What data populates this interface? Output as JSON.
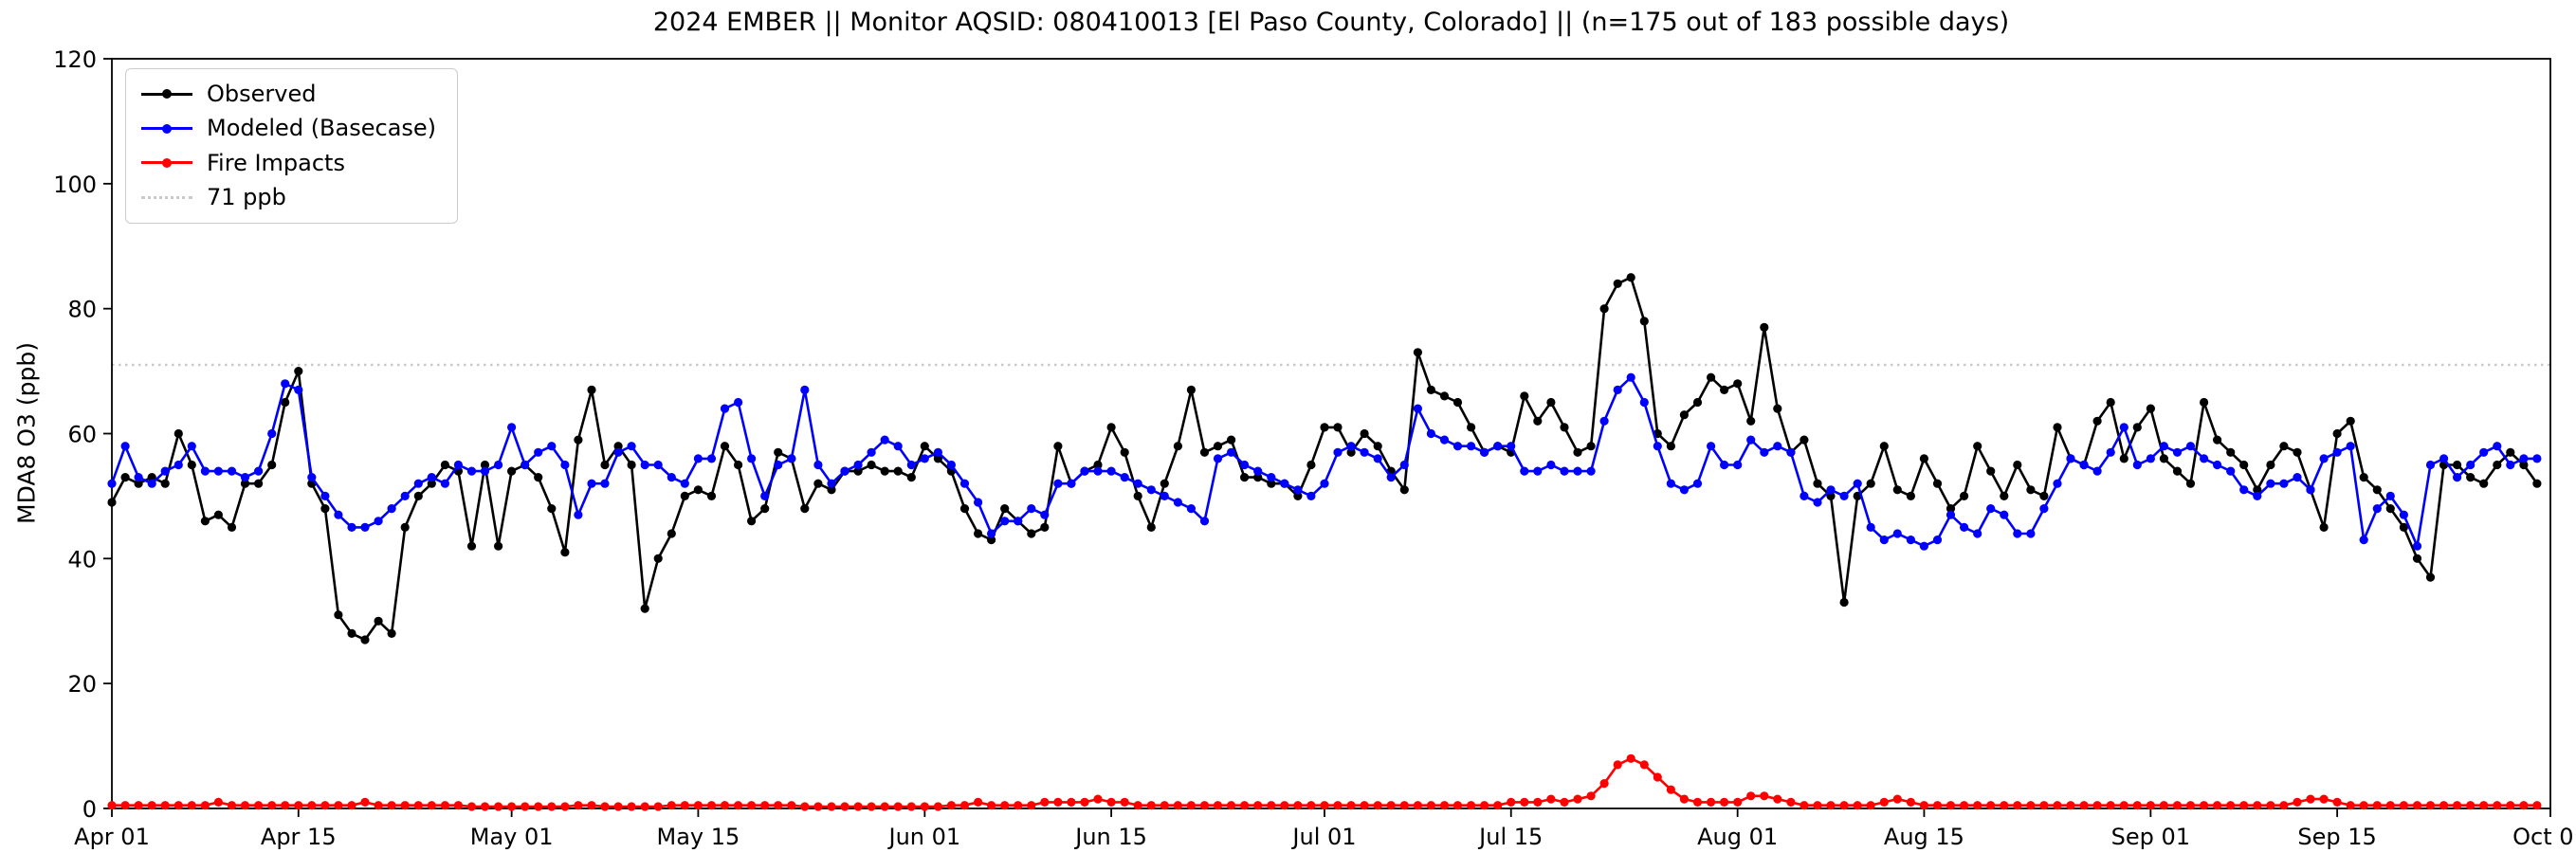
{
  "title": "2024 EMBER || Monitor AQSID: 080410013 [El Paso County, Colorado] || (n=175 out of 183 possible days)",
  "colors": {
    "observed": "#000000",
    "modeled": "#0000ff",
    "fire": "#ff0000",
    "threshold": "#c9c9c9",
    "axis": "#000000",
    "background": "#ffffff"
  },
  "chart_data": {
    "type": "line",
    "title": "2024 EMBER || Monitor AQSID: 080410013 [El Paso County, Colorado] || (n=175 out of 183 possible days)",
    "xlabel": "",
    "ylabel": "MDA8 O3 (ppb)",
    "ylim": [
      0,
      120
    ],
    "yticks": [
      0,
      20,
      40,
      60,
      80,
      100,
      120
    ],
    "x_unit": "day",
    "x_start": "Apr 01",
    "x_end": "Oct 01",
    "x_domain_days": 183,
    "n_points": 183,
    "grid": false,
    "legend_position": "upper-left",
    "x_ticks": [
      {
        "day": 0,
        "label": "Apr 01"
      },
      {
        "day": 14,
        "label": "Apr 15"
      },
      {
        "day": 30,
        "label": "May 01"
      },
      {
        "day": 44,
        "label": "May 15"
      },
      {
        "day": 61,
        "label": "Jun 01"
      },
      {
        "day": 75,
        "label": "Jun 15"
      },
      {
        "day": 91,
        "label": "Jul 01"
      },
      {
        "day": 105,
        "label": "Jul 15"
      },
      {
        "day": 122,
        "label": "Aug 01"
      },
      {
        "day": 136,
        "label": "Aug 15"
      },
      {
        "day": 153,
        "label": "Sep 01"
      },
      {
        "day": 167,
        "label": "Sep 15"
      },
      {
        "day": 183,
        "label": "Oct 01"
      }
    ],
    "threshold": {
      "value": 71,
      "label": "71 ppb",
      "color": "#c9c9c9"
    },
    "series": [
      {
        "id": "observed",
        "name": "Observed",
        "color": "#000000",
        "values": [
          49,
          53,
          52,
          53,
          52,
          60,
          55,
          46,
          47,
          45,
          52,
          52,
          55,
          65,
          70,
          52,
          48,
          31,
          28,
          27,
          30,
          28,
          45,
          50,
          52,
          55,
          54,
          42,
          55,
          42,
          54,
          55,
          53,
          48,
          41,
          59,
          67,
          55,
          58,
          55,
          32,
          40,
          44,
          50,
          51,
          50,
          58,
          55,
          46,
          48,
          57,
          56,
          48,
          52,
          51,
          54,
          54,
          55,
          54,
          54,
          53,
          58,
          56,
          54,
          48,
          44,
          43,
          48,
          46,
          44,
          45,
          58,
          52,
          54,
          55,
          61,
          57,
          50,
          45,
          52,
          58,
          67,
          57,
          58,
          59,
          53,
          53,
          52,
          52,
          50,
          55,
          61,
          61,
          57,
          60,
          58,
          54,
          51,
          73,
          67,
          66,
          65,
          61,
          57,
          58,
          57,
          66,
          62,
          65,
          61,
          57,
          58,
          80,
          84,
          85,
          78,
          60,
          58,
          63,
          65,
          69,
          67,
          68,
          62,
          77,
          64,
          57,
          59,
          52,
          50,
          33,
          50,
          52,
          58,
          51,
          50,
          56,
          52,
          48,
          50,
          58,
          54,
          50,
          55,
          51,
          50,
          61,
          56,
          55,
          62,
          65,
          56,
          61,
          64,
          56,
          54,
          52,
          65,
          59,
          57,
          55,
          51,
          55,
          58,
          57,
          51,
          45,
          60,
          62,
          53,
          51,
          48,
          45,
          40,
          37,
          55,
          55,
          53,
          52,
          55,
          57,
          55,
          52
        ]
      },
      {
        "id": "modeled",
        "name": "Modeled (Basecase)",
        "color": "#0000ff",
        "values": [
          52,
          58,
          53,
          52,
          54,
          55,
          58,
          54,
          54,
          54,
          53,
          54,
          60,
          68,
          67,
          53,
          50,
          47,
          45,
          45,
          46,
          48,
          50,
          52,
          53,
          52,
          55,
          54,
          54,
          55,
          61,
          55,
          57,
          58,
          55,
          47,
          52,
          52,
          57,
          58,
          55,
          55,
          53,
          52,
          56,
          56,
          64,
          65,
          56,
          50,
          55,
          56,
          67,
          55,
          52,
          54,
          55,
          57,
          59,
          58,
          55,
          56,
          57,
          55,
          52,
          49,
          44,
          46,
          46,
          48,
          47,
          52,
          52,
          54,
          54,
          54,
          53,
          52,
          51,
          50,
          49,
          48,
          46,
          56,
          57,
          55,
          54,
          53,
          52,
          51,
          50,
          52,
          57,
          58,
          57,
          56,
          53,
          55,
          64,
          60,
          59,
          58,
          58,
          57,
          58,
          58,
          54,
          54,
          55,
          54,
          54,
          54,
          62,
          67,
          69,
          65,
          58,
          52,
          51,
          52,
          58,
          55,
          55,
          59,
          57,
          58,
          57,
          50,
          49,
          51,
          50,
          52,
          45,
          43,
          44,
          43,
          42,
          43,
          47,
          45,
          44,
          48,
          47,
          44,
          44,
          48,
          52,
          56,
          55,
          54,
          57,
          61,
          55,
          56,
          58,
          57,
          58,
          56,
          55,
          54,
          51,
          50,
          52,
          52,
          53,
          51,
          56,
          57,
          58,
          43,
          48,
          50,
          47,
          42,
          55,
          56,
          53,
          55,
          57,
          58,
          55,
          56,
          56
        ]
      },
      {
        "id": "fire",
        "name": "Fire Impacts",
        "color": "#ff0000",
        "values": [
          0.5,
          0.5,
          0.5,
          0.5,
          0.5,
          0.5,
          0.5,
          0.5,
          1,
          0.5,
          0.5,
          0.5,
          0.5,
          0.5,
          0.5,
          0.5,
          0.5,
          0.5,
          0.5,
          1,
          0.5,
          0.5,
          0.5,
          0.5,
          0.5,
          0.5,
          0.5,
          0.3,
          0.3,
          0.3,
          0.3,
          0.3,
          0.3,
          0.3,
          0.3,
          0.5,
          0.5,
          0.3,
          0.3,
          0.3,
          0.3,
          0.3,
          0.5,
          0.5,
          0.5,
          0.5,
          0.5,
          0.5,
          0.5,
          0.5,
          0.5,
          0.5,
          0.3,
          0.3,
          0.3,
          0.3,
          0.3,
          0.3,
          0.3,
          0.3,
          0.3,
          0.3,
          0.3,
          0.5,
          0.5,
          1,
          0.5,
          0.5,
          0.5,
          0.5,
          1,
          1,
          1,
          1,
          1.5,
          1,
          1,
          0.5,
          0.5,
          0.5,
          0.5,
          0.5,
          0.5,
          0.5,
          0.5,
          0.5,
          0.5,
          0.5,
          0.5,
          0.5,
          0.5,
          0.5,
          0.5,
          0.5,
          0.5,
          0.5,
          0.5,
          0.5,
          0.5,
          0.5,
          0.5,
          0.5,
          0.5,
          0.5,
          0.5,
          1,
          1,
          1,
          1.5,
          1,
          1.5,
          2,
          4,
          7,
          8,
          7,
          5,
          3,
          1.5,
          1,
          1,
          1,
          1,
          2,
          2,
          1.5,
          1,
          0.5,
          0.5,
          0.5,
          0.5,
          0.5,
          0.5,
          1,
          1.5,
          1,
          0.5,
          0.5,
          0.5,
          0.5,
          0.5,
          0.5,
          0.5,
          0.5,
          0.5,
          0.5,
          0.5,
          0.5,
          0.5,
          0.5,
          0.5,
          0.5,
          0.5,
          0.5,
          0.5,
          0.5,
          0.5,
          0.5,
          0.5,
          0.5,
          0.5,
          0.5,
          0.5,
          0.5,
          1,
          1.5,
          1.5,
          1,
          0.5,
          0.5,
          0.5,
          0.5,
          0.5,
          0.5,
          0.5,
          0.5,
          0.5,
          0.5,
          0.5,
          0.5,
          0.5,
          0.5,
          0.5
        ]
      }
    ]
  },
  "legend": {
    "items": [
      {
        "label": "Observed"
      },
      {
        "label": "Modeled (Basecase)"
      },
      {
        "label": "Fire Impacts"
      },
      {
        "label": "71 ppb"
      }
    ]
  }
}
